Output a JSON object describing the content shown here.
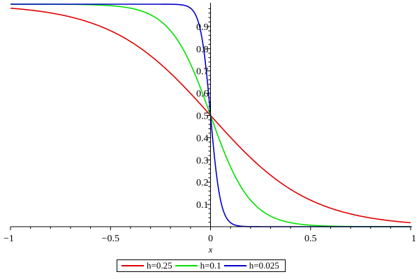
{
  "chart_data": {
    "type": "line",
    "title": "",
    "xlabel": "x",
    "ylabel": "",
    "xlim": [
      -1,
      1
    ],
    "ylim": [
      0,
      1
    ],
    "x_ticks": [
      -1,
      -0.5,
      0,
      0.5,
      1
    ],
    "x_tick_labels": [
      "−1",
      "−0.5",
      "0",
      "0.5",
      "1"
    ],
    "y_ticks": [
      0.1,
      0.2,
      0.3,
      0.4,
      0.5,
      0.6,
      0.7,
      0.8,
      0.9
    ],
    "y_tick_labels": [
      "0.1",
      "0.2",
      "0.3",
      "0.4",
      "0.5",
      "0.6",
      "0.7",
      "0.8",
      "0.9"
    ],
    "grid": false,
    "legend_position": "bottom",
    "series": [
      {
        "name": "h=0.25",
        "color": "#e00000",
        "h": 0.25
      },
      {
        "name": "h=0.1",
        "color": "#00e000",
        "h": 0.1
      },
      {
        "name": "h=0.025",
        "color": "#0000cc",
        "h": 0.025
      }
    ],
    "formula": "y = 1/(1+exp(x/h))",
    "sample_points": {
      "h=0.25": {
        "x": [
          -1,
          -0.5,
          0,
          0.5,
          1
        ],
        "y": [
          0.982,
          0.881,
          0.5,
          0.119,
          0.018
        ]
      },
      "h=0.1": {
        "x": [
          -1,
          -0.25,
          0,
          0.25,
          1
        ],
        "y": [
          1.0,
          0.924,
          0.5,
          0.076,
          0.0
        ]
      },
      "h=0.025": {
        "x": [
          -1,
          -0.05,
          0,
          0.05,
          1
        ],
        "y": [
          1.0,
          0.881,
          0.5,
          0.119,
          0.0
        ]
      }
    }
  }
}
